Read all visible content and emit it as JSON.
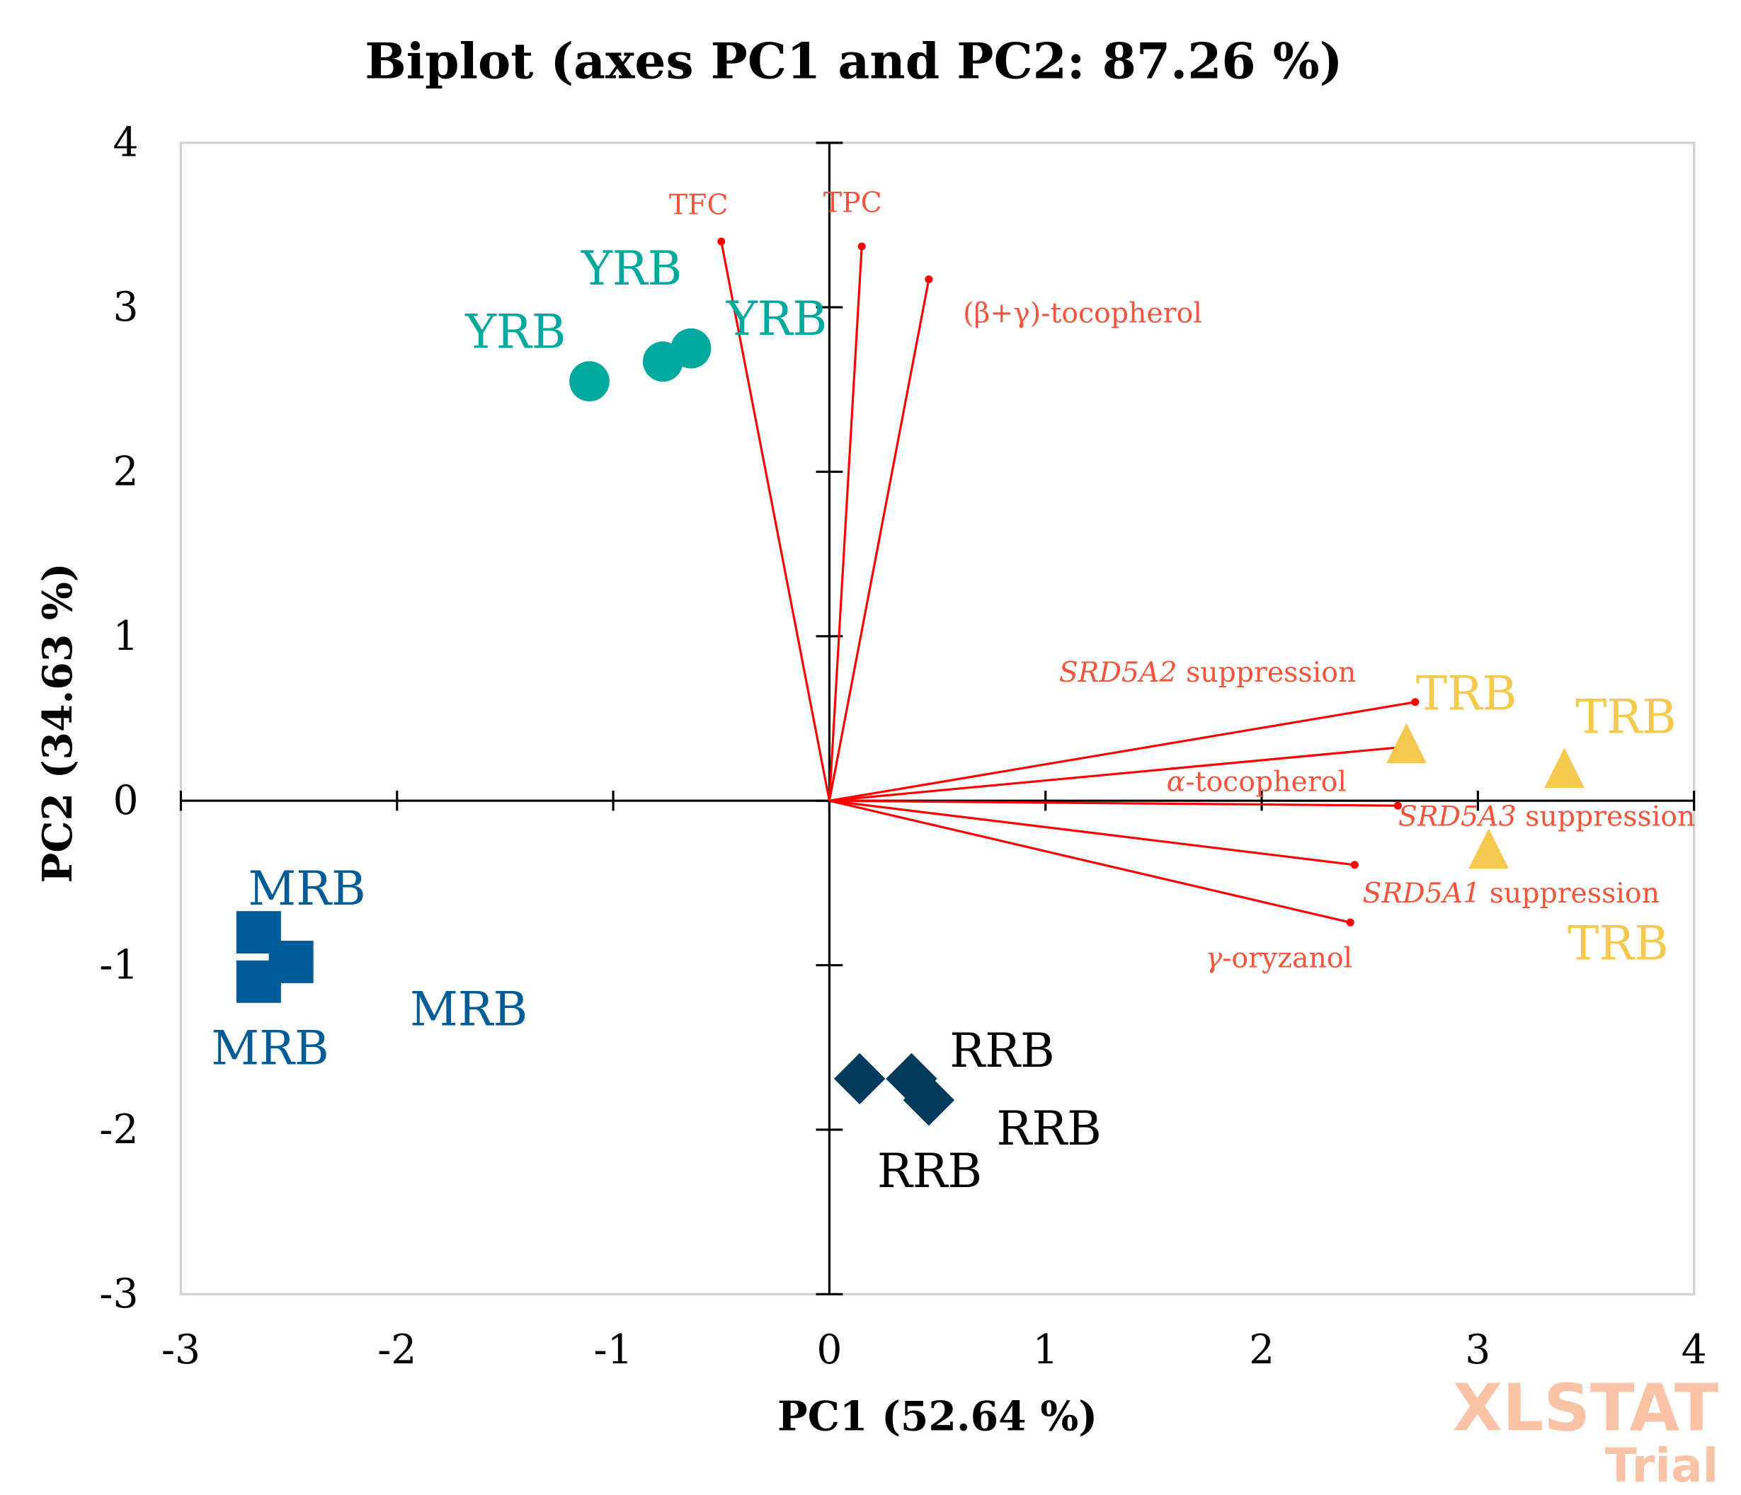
{
  "chart_data": {
    "type": "scatter",
    "subtype": "biplot",
    "title": "Biplot (axes PC1 and PC2: 87.26 %)",
    "xlabel": "PC1 (52.64 %)",
    "ylabel": "PC2 (34.63 %)",
    "xlim": [
      -3,
      4
    ],
    "ylim": [
      -3,
      4
    ],
    "xticks": [
      "-3",
      "-2",
      "-1",
      "0",
      "1",
      "2",
      "3",
      "4"
    ],
    "yticks": [
      "4",
      "3",
      "2",
      "1",
      "0",
      "-1",
      "-2",
      "-3"
    ],
    "grid": false,
    "groups": [
      {
        "name": "YRB",
        "color": "#00a99d",
        "marker": "circle",
        "points": [
          {
            "x": -1.11,
            "y": 2.55,
            "label": "YRB"
          },
          {
            "x": -0.77,
            "y": 2.67,
            "label": "YRB"
          },
          {
            "x": -0.64,
            "y": 2.75,
            "label": "YRB"
          }
        ]
      },
      {
        "name": "MRB",
        "color": "#005b96",
        "marker": "square",
        "points": [
          {
            "x": -2.64,
            "y": -0.8,
            "label": "MRB"
          },
          {
            "x": -2.49,
            "y": -0.98,
            "label": "MRB"
          },
          {
            "x": -2.64,
            "y": -1.1,
            "label": "MRB"
          }
        ]
      },
      {
        "name": "TRB",
        "color": "#f5c94e",
        "marker": "triangle",
        "points": [
          {
            "x": 2.67,
            "y": 0.35,
            "label": "TRB"
          },
          {
            "x": 3.4,
            "y": 0.2,
            "label": "TRB"
          },
          {
            "x": 3.05,
            "y": -0.29,
            "label": "TRB"
          }
        ]
      },
      {
        "name": "RRB",
        "color": "#003a5d",
        "marker": "diamond",
        "points": [
          {
            "x": 0.14,
            "y": -1.69,
            "label": "RRB"
          },
          {
            "x": 0.38,
            "y": -1.69,
            "label": "RRB"
          },
          {
            "x": 0.46,
            "y": -1.82,
            "label": "RRB"
          }
        ]
      }
    ],
    "vectors": [
      {
        "italic": "",
        "text": "TFC",
        "x": -0.5,
        "y": 3.4
      },
      {
        "italic": "",
        "text": "TPC",
        "x": 0.15,
        "y": 3.37
      },
      {
        "italic": "",
        "text": "(β+γ)-tocopherol",
        "x": 0.46,
        "y": 3.17
      },
      {
        "italic": "SRD5A2",
        "text": " suppression",
        "x": 2.71,
        "y": 0.6
      },
      {
        "italic": "α",
        "text": "-tocopherol",
        "x": 2.68,
        "y": 0.33
      },
      {
        "italic": "SRD5A3",
        "text": " suppression",
        "x": 2.63,
        "y": -0.03
      },
      {
        "italic": "SRD5A1",
        "text": " suppression",
        "x": 2.43,
        "y": -0.39
      },
      {
        "italic": "γ",
        "text": "-oryzanol",
        "x": 2.41,
        "y": -0.74
      }
    ],
    "vector_color": "#ff0000",
    "vector_label_color": "#f4553a"
  },
  "watermark": {
    "line1": "XLSTAT",
    "line2": "Trial"
  }
}
